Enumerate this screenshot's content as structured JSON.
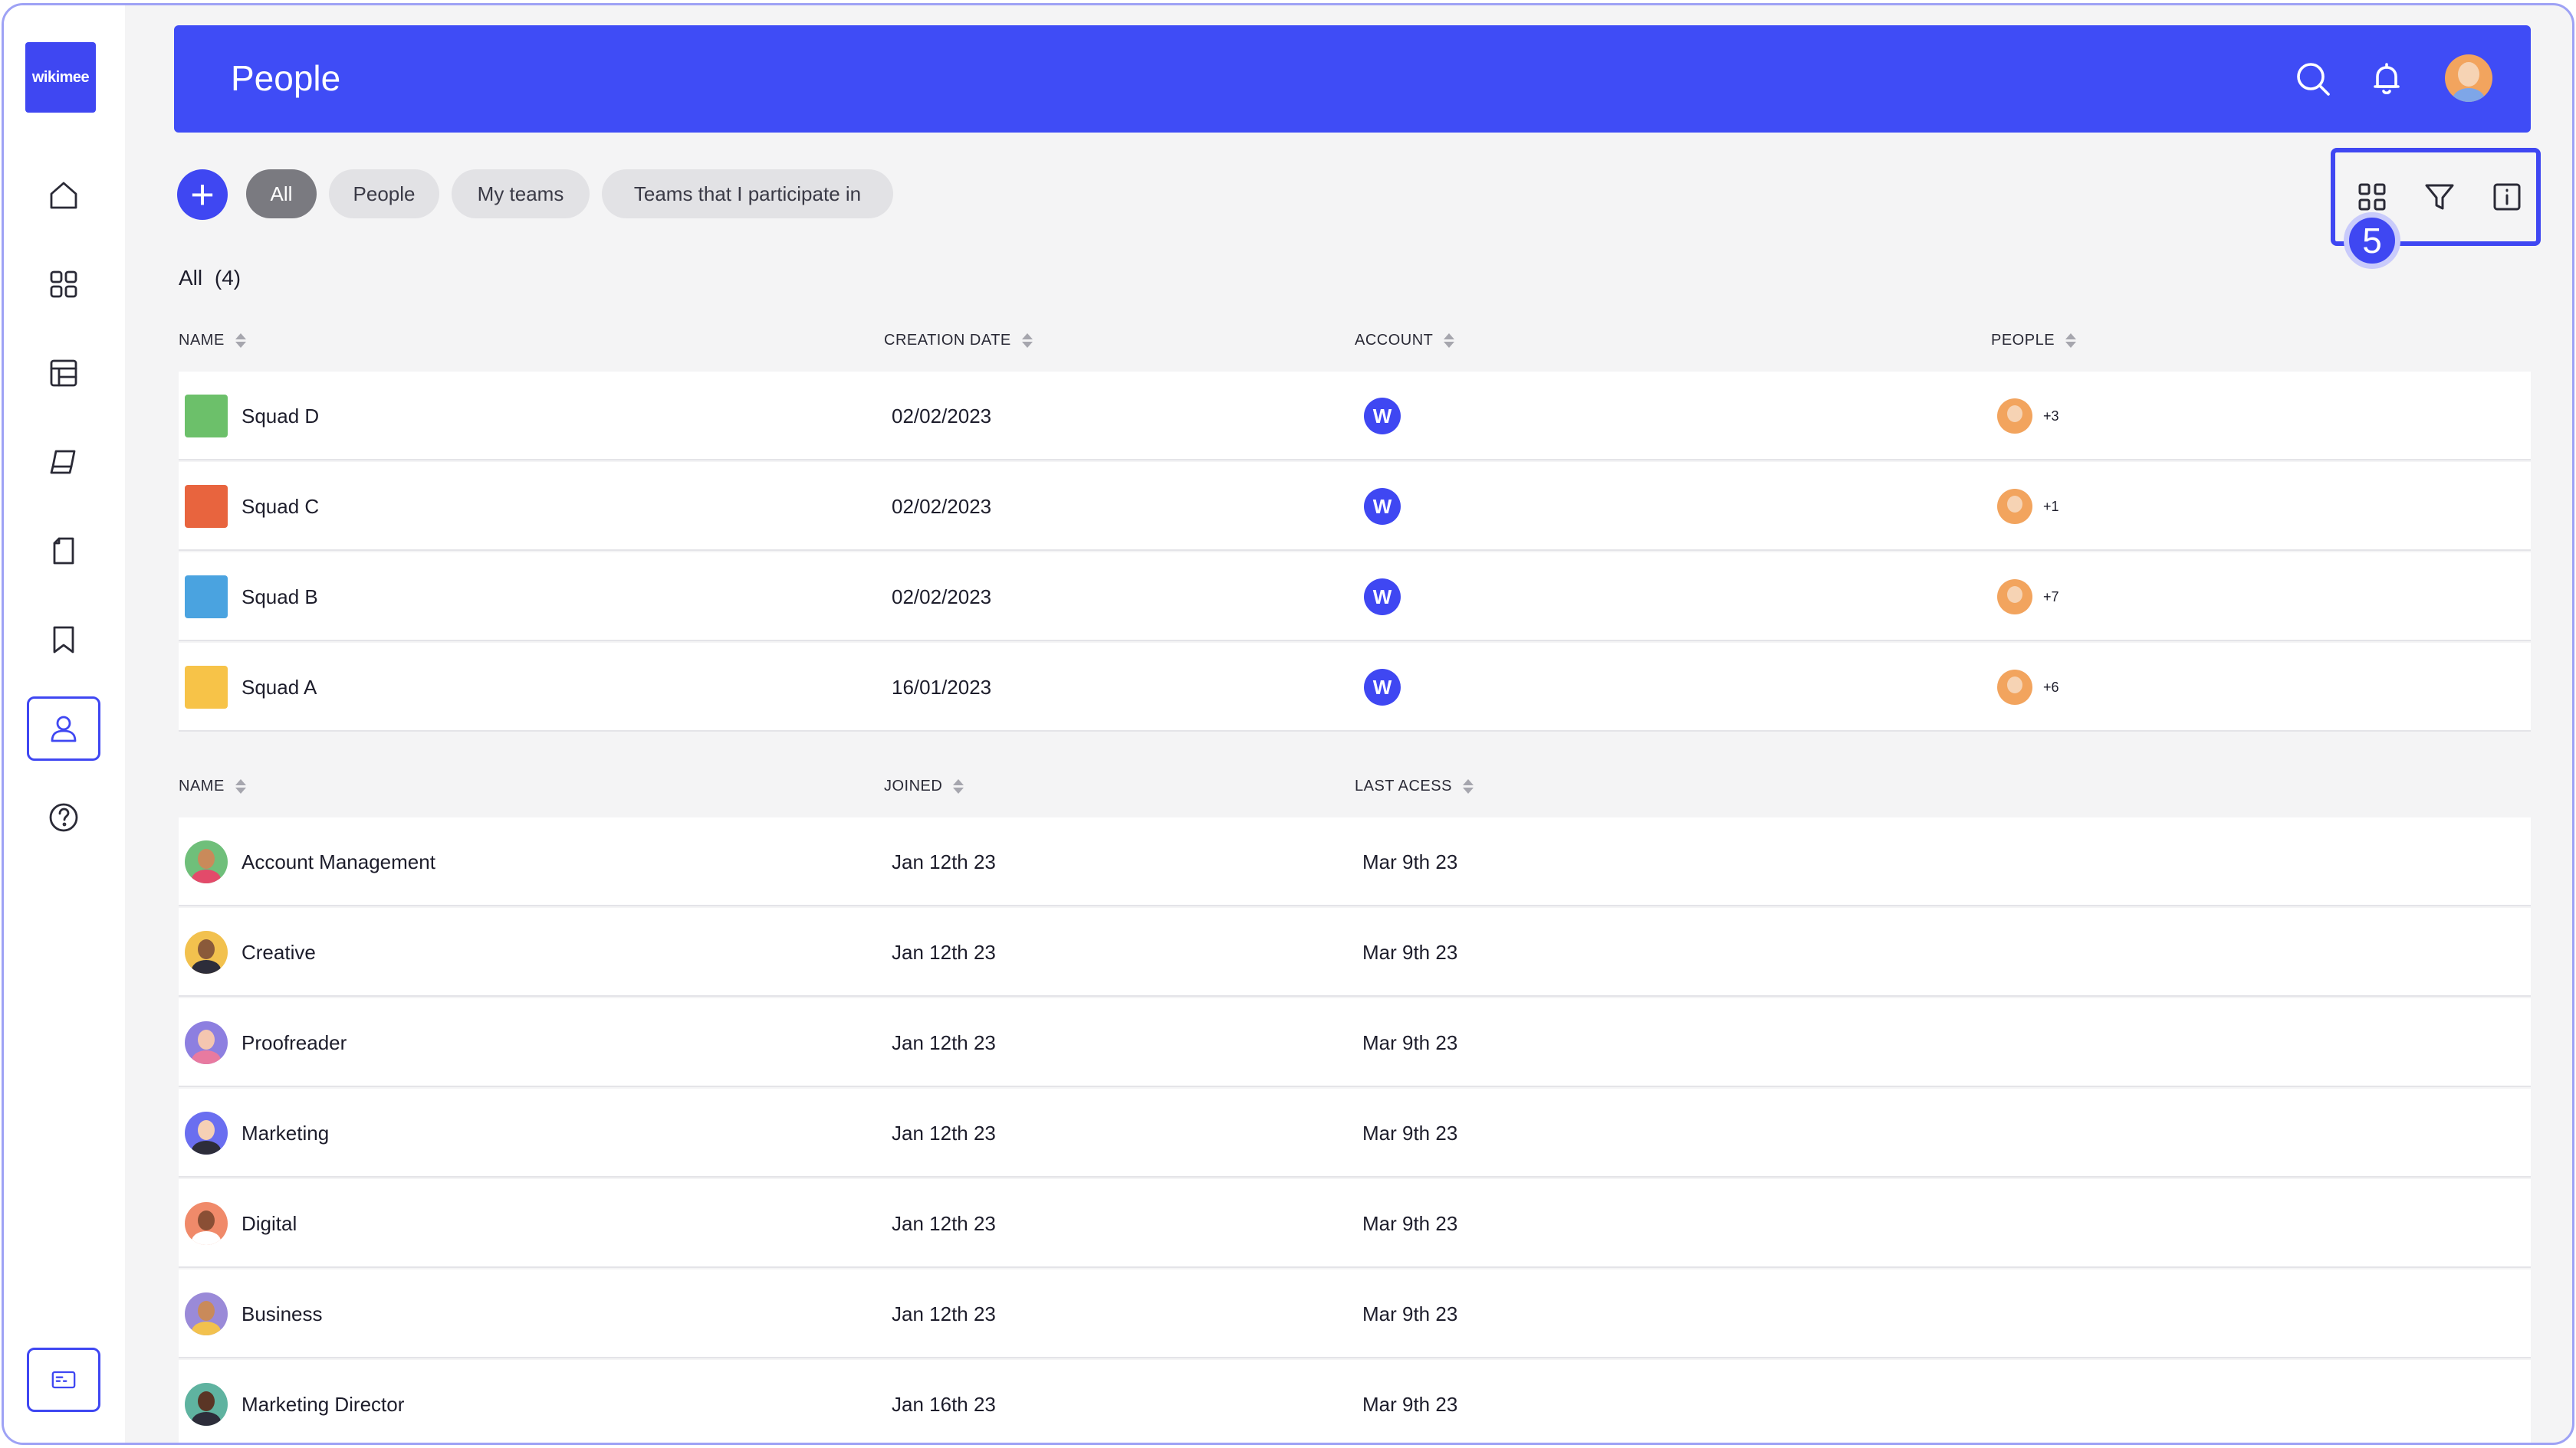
{
  "app": {
    "logo_text": "wikimee"
  },
  "header": {
    "title": "People"
  },
  "filters": {
    "add_label": "+",
    "pills": [
      "All",
      "People",
      "My teams",
      "Teams that I participate in"
    ],
    "active": "All"
  },
  "step_badge": "5",
  "list_count": {
    "label": "All",
    "count": "(4)"
  },
  "teams_table": {
    "headers": [
      "NAME",
      "CREATION DATE",
      "ACCOUNT",
      "PEOPLE"
    ],
    "rows": [
      {
        "name": "Squad D",
        "date": "02/02/2023",
        "account": "W",
        "people_extra": "+3",
        "icon_color": "#6cc06a"
      },
      {
        "name": "Squad C",
        "date": "02/02/2023",
        "account": "W",
        "people_extra": "+1",
        "icon_color": "#e8643e"
      },
      {
        "name": "Squad B",
        "date": "02/02/2023",
        "account": "W",
        "people_extra": "+7",
        "icon_color": "#4aa3e0"
      },
      {
        "name": "Squad A",
        "date": "16/01/2023",
        "account": "W",
        "people_extra": "+6",
        "icon_color": "#f7c348"
      }
    ]
  },
  "people_table": {
    "headers": [
      "NAME",
      "JOINED",
      "LAST ACESS"
    ],
    "rows": [
      {
        "name": "Account Management",
        "joined": "Jan 12th 23",
        "last": "Mar 9th 23",
        "bg": "#6fbf7a",
        "skin": "#c98a5a",
        "shirt": "#e34a6a"
      },
      {
        "name": "Creative",
        "joined": "Jan 12th 23",
        "last": "Mar 9th 23",
        "bg": "#f2c14e",
        "skin": "#8a5a3a",
        "shirt": "#2d2d3a"
      },
      {
        "name": "Proofreader",
        "joined": "Jan 12th 23",
        "last": "Mar 9th 23",
        "bg": "#8d7fe0",
        "skin": "#f4c6b0",
        "shirt": "#e87aa0"
      },
      {
        "name": "Marketing",
        "joined": "Jan 12th 23",
        "last": "Mar 9th 23",
        "bg": "#6a6ef0",
        "skin": "#f5d0b5",
        "shirt": "#2d2d3a"
      },
      {
        "name": "Digital",
        "joined": "Jan 12th 23",
        "last": "Mar 9th 23",
        "bg": "#f08a6a",
        "skin": "#8a4f35",
        "shirt": "#ffffff"
      },
      {
        "name": "Business",
        "joined": "Jan 12th 23",
        "last": "Mar 9th 23",
        "bg": "#9a8ad8",
        "skin": "#c98a5a",
        "shirt": "#f2c14e"
      },
      {
        "name": "Marketing Director",
        "joined": "Jan 16th 23",
        "last": "Mar 9th 23",
        "bg": "#5fb3a0",
        "skin": "#5a3525",
        "shirt": "#2d2d3a"
      }
    ]
  }
}
